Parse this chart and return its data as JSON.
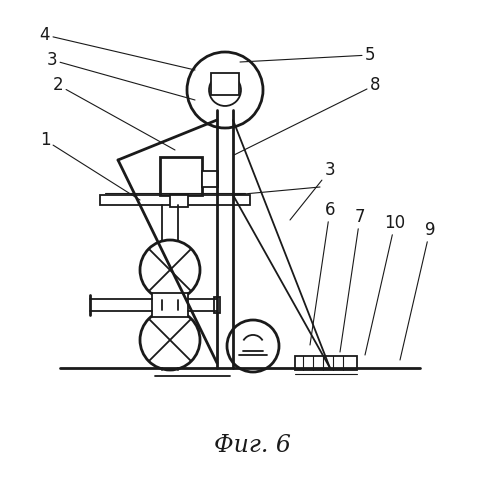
{
  "title": "Фиг. 6",
  "background": "#ffffff",
  "line_color": "#1a1a1a",
  "lw": 1.3,
  "lw_heavy": 2.0,
  "lw_thin": 0.8
}
